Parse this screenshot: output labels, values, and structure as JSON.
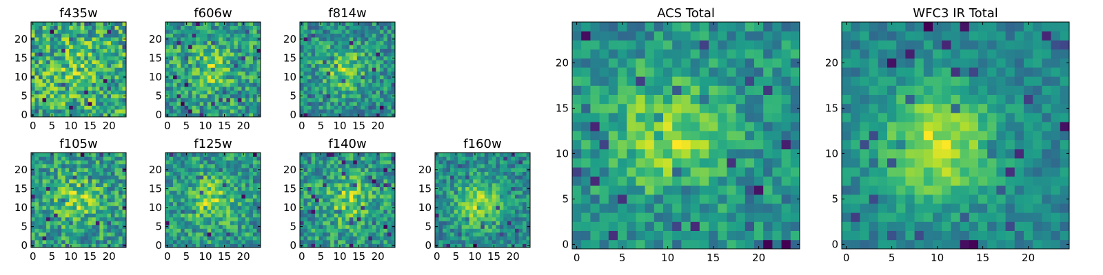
{
  "chart_data": [
    {
      "type": "heatmap",
      "title": "f435w",
      "xlim": [
        0,
        25
      ],
      "ylim": [
        0,
        25
      ],
      "xticks": [
        "0",
        "5",
        "10",
        "15",
        "20"
      ],
      "yticks": [
        "0",
        "5",
        "10",
        "15",
        "20"
      ],
      "grid": [],
      "colormap": "viridis",
      "peak": [
        12,
        12
      ],
      "peak_strength": 0.15,
      "noise": 0.55,
      "seed": 11
    },
    {
      "type": "heatmap",
      "title": "f606w",
      "xlim": [
        0,
        25
      ],
      "ylim": [
        0,
        25
      ],
      "xticks": [
        "0",
        "5",
        "10",
        "15",
        "20"
      ],
      "yticks": [
        "0",
        "5",
        "10",
        "15",
        "20"
      ],
      "grid": [],
      "colormap": "viridis",
      "peak": [
        11,
        12
      ],
      "peak_strength": 0.3,
      "noise": 0.5,
      "seed": 23
    },
    {
      "type": "heatmap",
      "title": "f814w",
      "xlim": [
        0,
        25
      ],
      "ylim": [
        0,
        25
      ],
      "xticks": [
        "0",
        "5",
        "10",
        "15",
        "20"
      ],
      "yticks": [
        "0",
        "5",
        "10",
        "15",
        "20"
      ],
      "grid": [],
      "colormap": "viridis",
      "peak": [
        11,
        12
      ],
      "peak_strength": 0.45,
      "noise": 0.5,
      "seed": 37
    },
    {
      "type": "heatmap",
      "title": "f105w",
      "xlim": [
        0,
        25
      ],
      "ylim": [
        0,
        25
      ],
      "xticks": [
        "0",
        "5",
        "10",
        "15",
        "20"
      ],
      "yticks": [
        "0",
        "5",
        "10",
        "15",
        "20"
      ],
      "grid": [],
      "colormap": "viridis",
      "peak": [
        12,
        12
      ],
      "peak_strength": 0.3,
      "noise": 0.45,
      "seed": 41
    },
    {
      "type": "heatmap",
      "title": "f125w",
      "xlim": [
        0,
        25
      ],
      "ylim": [
        0,
        25
      ],
      "xticks": [
        "0",
        "5",
        "10",
        "15",
        "20"
      ],
      "yticks": [
        "0",
        "5",
        "10",
        "15",
        "20"
      ],
      "grid": [],
      "colormap": "viridis",
      "peak": [
        12,
        12
      ],
      "peak_strength": 0.35,
      "noise": 0.4,
      "seed": 53
    },
    {
      "type": "heatmap",
      "title": "f140w",
      "xlim": [
        0,
        25
      ],
      "ylim": [
        0,
        25
      ],
      "xticks": [
        "0",
        "5",
        "10",
        "15",
        "20"
      ],
      "yticks": [
        "0",
        "5",
        "10",
        "15",
        "20"
      ],
      "grid": [],
      "colormap": "viridis",
      "peak": [
        12,
        12
      ],
      "peak_strength": 0.35,
      "noise": 0.45,
      "seed": 67
    },
    {
      "type": "heatmap",
      "title": "f160w",
      "xlim": [
        0,
        25
      ],
      "ylim": [
        0,
        25
      ],
      "xticks": [
        "0",
        "5",
        "10",
        "15",
        "20"
      ],
      "yticks": [
        "0",
        "5",
        "10",
        "15",
        "20"
      ],
      "grid": [],
      "colormap": "viridis",
      "peak": [
        11,
        11
      ],
      "peak_strength": 0.5,
      "noise": 0.35,
      "seed": 79
    },
    {
      "type": "heatmap",
      "title": "ACS Total",
      "xlim": [
        0,
        25
      ],
      "ylim": [
        0,
        25
      ],
      "xticks": [
        "0",
        "5",
        "10",
        "15",
        "20"
      ],
      "yticks": [
        "0",
        "5",
        "10",
        "15",
        "20"
      ],
      "grid": [],
      "colormap": "viridis",
      "peak": [
        10,
        12
      ],
      "peak_strength": 0.45,
      "noise": 0.35,
      "seed": 83
    },
    {
      "type": "heatmap",
      "title": "WFC3 IR Total",
      "xlim": [
        0,
        25
      ],
      "ylim": [
        0,
        25
      ],
      "xticks": [
        "0",
        "5",
        "10",
        "15",
        "20"
      ],
      "yticks": [
        "0",
        "5",
        "10",
        "15",
        "20"
      ],
      "grid": [],
      "colormap": "viridis",
      "peak": [
        10,
        11
      ],
      "peak_strength": 0.6,
      "noise": 0.25,
      "seed": 97
    }
  ]
}
